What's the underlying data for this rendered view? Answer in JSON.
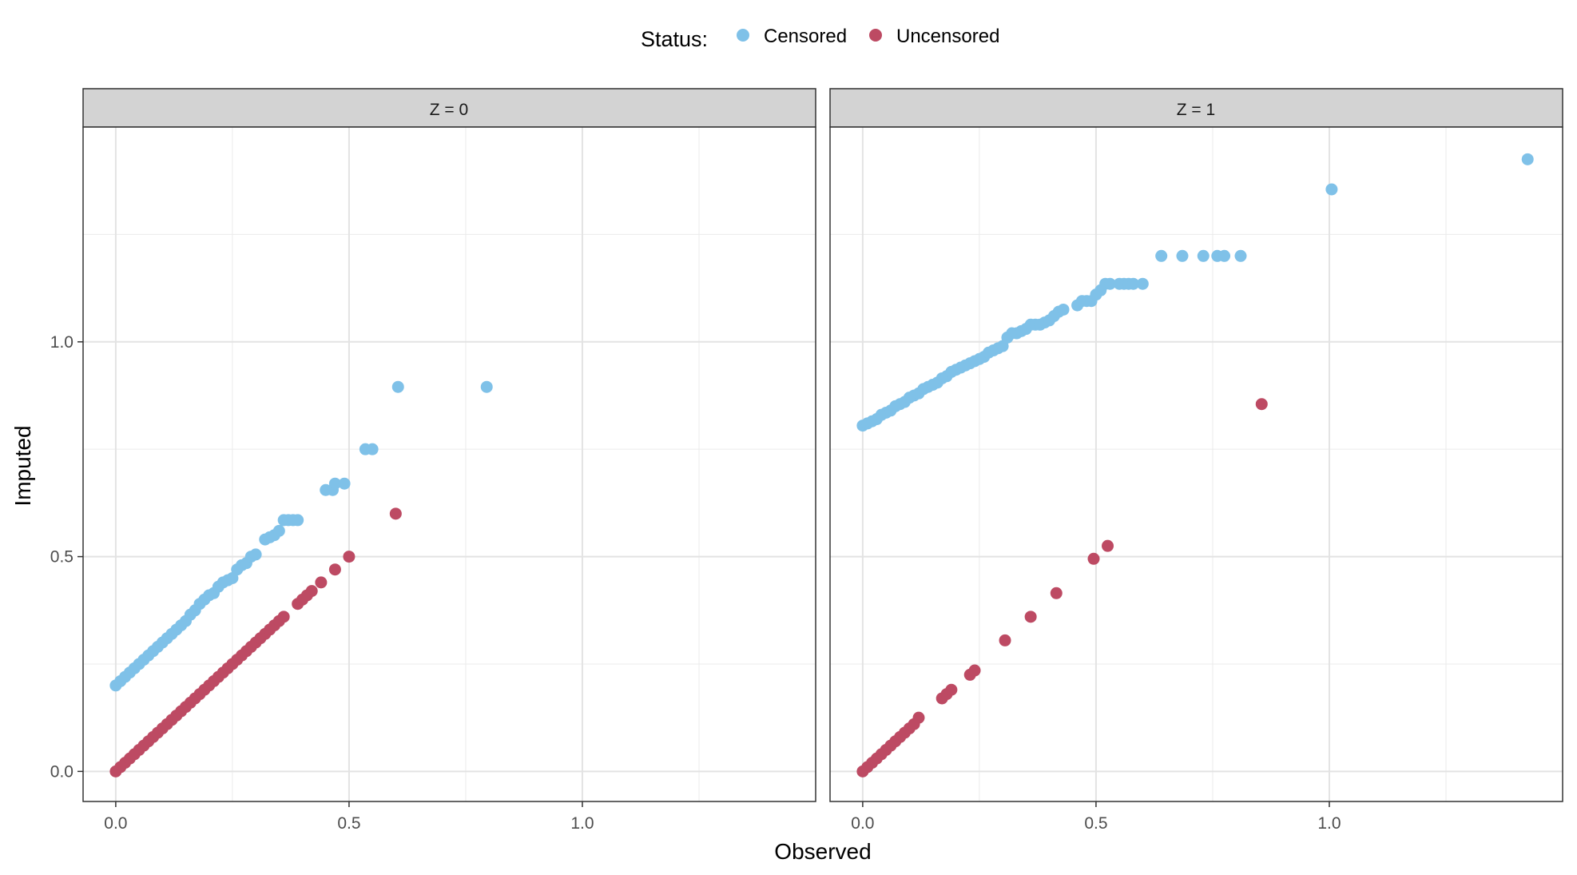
{
  "legend": {
    "title": "Status:",
    "items": [
      {
        "label": "Censored",
        "color": "#7fc1e8"
      },
      {
        "label": "Uncensored",
        "color": "#bd4a63"
      }
    ],
    "position": "top"
  },
  "chart_data": {
    "type": "scatter",
    "xlabel": "Observed",
    "ylabel": "Imputed",
    "xlim": [
      -0.07,
      1.5
    ],
    "ylim": [
      -0.07,
      1.5
    ],
    "x_ticks": [
      0.0,
      0.5,
      1.0
    ],
    "x_tick_labels": [
      "0.0",
      "0.5",
      "1.0"
    ],
    "y_ticks": [
      0.0,
      0.5,
      1.0
    ],
    "y_tick_labels": [
      "0.0",
      "0.5",
      "1.0"
    ],
    "grid": true,
    "legend_position": "top",
    "panels": [
      {
        "strip_label": "Z = 0",
        "series": [
          {
            "name": "Censored",
            "color": "#7fc1e8",
            "x": [
              0.0,
              0.01,
              0.02,
              0.03,
              0.04,
              0.05,
              0.06,
              0.07,
              0.08,
              0.09,
              0.1,
              0.11,
              0.12,
              0.13,
              0.14,
              0.15,
              0.16,
              0.17,
              0.18,
              0.19,
              0.2,
              0.21,
              0.22,
              0.23,
              0.24,
              0.25,
              0.26,
              0.27,
              0.28,
              0.29,
              0.3,
              0.32,
              0.33,
              0.34,
              0.35,
              0.36,
              0.37,
              0.38,
              0.39,
              0.45,
              0.465,
              0.47,
              0.49,
              0.535,
              0.55,
              0.605,
              0.795
            ],
            "y": [
              0.2,
              0.21,
              0.22,
              0.23,
              0.24,
              0.25,
              0.26,
              0.27,
              0.28,
              0.29,
              0.3,
              0.31,
              0.32,
              0.33,
              0.34,
              0.35,
              0.365,
              0.375,
              0.39,
              0.4,
              0.41,
              0.415,
              0.43,
              0.44,
              0.445,
              0.45,
              0.47,
              0.48,
              0.485,
              0.5,
              0.505,
              0.54,
              0.545,
              0.55,
              0.56,
              0.585,
              0.585,
              0.585,
              0.585,
              0.655,
              0.655,
              0.67,
              0.67,
              0.75,
              0.75,
              0.895,
              0.895
            ]
          },
          {
            "name": "Uncensored",
            "color": "#bd4a63",
            "x": [
              0.0,
              0.01,
              0.02,
              0.03,
              0.04,
              0.05,
              0.06,
              0.07,
              0.08,
              0.09,
              0.1,
              0.11,
              0.12,
              0.13,
              0.14,
              0.15,
              0.16,
              0.17,
              0.18,
              0.19,
              0.2,
              0.21,
              0.22,
              0.23,
              0.24,
              0.25,
              0.26,
              0.27,
              0.28,
              0.29,
              0.3,
              0.31,
              0.32,
              0.33,
              0.34,
              0.35,
              0.36,
              0.39,
              0.4,
              0.41,
              0.42,
              0.44,
              0.47,
              0.5,
              0.6
            ],
            "y": [
              0.0,
              0.01,
              0.02,
              0.03,
              0.04,
              0.05,
              0.06,
              0.07,
              0.08,
              0.09,
              0.1,
              0.11,
              0.12,
              0.13,
              0.14,
              0.15,
              0.16,
              0.17,
              0.18,
              0.19,
              0.2,
              0.21,
              0.22,
              0.23,
              0.24,
              0.25,
              0.26,
              0.27,
              0.28,
              0.29,
              0.3,
              0.31,
              0.32,
              0.33,
              0.34,
              0.35,
              0.36,
              0.39,
              0.4,
              0.41,
              0.42,
              0.44,
              0.47,
              0.5,
              0.6
            ]
          }
        ]
      },
      {
        "strip_label": "Z = 1",
        "series": [
          {
            "name": "Censored",
            "color": "#7fc1e8",
            "x": [
              0.0,
              0.01,
              0.02,
              0.03,
              0.04,
              0.05,
              0.06,
              0.07,
              0.08,
              0.09,
              0.1,
              0.11,
              0.12,
              0.13,
              0.14,
              0.15,
              0.16,
              0.17,
              0.18,
              0.19,
              0.2,
              0.21,
              0.22,
              0.23,
              0.24,
              0.25,
              0.26,
              0.27,
              0.28,
              0.29,
              0.3,
              0.31,
              0.32,
              0.33,
              0.34,
              0.35,
              0.36,
              0.37,
              0.38,
              0.39,
              0.4,
              0.41,
              0.42,
              0.43,
              0.46,
              0.47,
              0.48,
              0.49,
              0.5,
              0.51,
              0.52,
              0.53,
              0.55,
              0.56,
              0.57,
              0.58,
              0.6,
              0.64,
              0.685,
              0.73,
              0.76,
              0.775,
              0.81,
              1.005,
              1.425
            ],
            "y": [
              0.805,
              0.81,
              0.815,
              0.82,
              0.83,
              0.835,
              0.84,
              0.85,
              0.855,
              0.86,
              0.87,
              0.875,
              0.88,
              0.89,
              0.895,
              0.9,
              0.905,
              0.915,
              0.92,
              0.93,
              0.935,
              0.94,
              0.945,
              0.95,
              0.955,
              0.96,
              0.965,
              0.975,
              0.98,
              0.985,
              0.99,
              1.01,
              1.02,
              1.02,
              1.025,
              1.03,
              1.04,
              1.04,
              1.04,
              1.045,
              1.05,
              1.06,
              1.07,
              1.075,
              1.085,
              1.095,
              1.095,
              1.095,
              1.11,
              1.12,
              1.135,
              1.135,
              1.135,
              1.135,
              1.135,
              1.135,
              1.135,
              1.2,
              1.2,
              1.2,
              1.2,
              1.2,
              1.2,
              1.355,
              1.425
            ]
          },
          {
            "name": "Uncensored",
            "color": "#bd4a63",
            "x": [
              0.0,
              0.01,
              0.02,
              0.03,
              0.04,
              0.05,
              0.06,
              0.07,
              0.08,
              0.09,
              0.1,
              0.11,
              0.12,
              0.17,
              0.18,
              0.19,
              0.23,
              0.24,
              0.305,
              0.36,
              0.415,
              0.495,
              0.525,
              0.855
            ],
            "y": [
              0.0,
              0.01,
              0.02,
              0.03,
              0.04,
              0.05,
              0.06,
              0.07,
              0.08,
              0.09,
              0.1,
              0.11,
              0.125,
              0.17,
              0.18,
              0.19,
              0.225,
              0.235,
              0.305,
              0.36,
              0.415,
              0.495,
              0.525,
              0.855
            ]
          }
        ]
      }
    ]
  }
}
